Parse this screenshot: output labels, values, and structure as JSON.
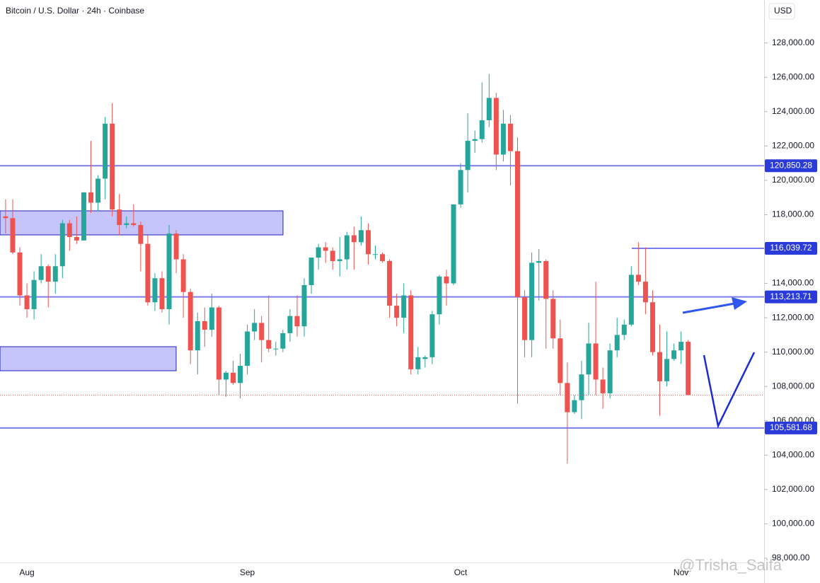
{
  "chart_data": {
    "type": "candlestick",
    "title": "Bitcoin / U.S. Dollar · 24h · Coinbase",
    "currency": "USD",
    "watermark": "@Trisha_Saifa",
    "up_color": "#26a69a",
    "down_color": "#ef5350",
    "level_color": "#7b7bf2",
    "level_tag_color": "#2b3bd9",
    "categories": [
      null,
      null,
      "Aug",
      null,
      null,
      null,
      null,
      null,
      null,
      null,
      null,
      null,
      null,
      null,
      null,
      null,
      null,
      null,
      null,
      null,
      null,
      null,
      null,
      null,
      null,
      null,
      null,
      null,
      null,
      null,
      null,
      null,
      null,
      "Sep",
      null,
      null,
      null,
      null,
      null,
      null,
      null,
      null,
      null,
      null,
      null,
      null,
      null,
      null,
      null,
      null,
      null,
      null,
      null,
      null,
      null,
      null,
      null,
      null,
      null,
      null,
      null,
      null,
      null,
      "Oct",
      null,
      null,
      null,
      null,
      null,
      null,
      null,
      null,
      null,
      null,
      null,
      null,
      null,
      null,
      null,
      null,
      null,
      null,
      null,
      null,
      null,
      null,
      null,
      null,
      null,
      null,
      null,
      null,
      null,
      null,
      "Nov",
      null,
      null
    ],
    "open": [
      117900,
      117800,
      115800,
      113300,
      112500,
      114200,
      115000,
      114100,
      115000,
      117500,
      116700,
      116500,
      119300,
      118700,
      120100,
      123300,
      118300,
      117400,
      117500,
      117400,
      116300,
      112900,
      114300,
      112500,
      116900,
      115400,
      113500,
      110100,
      111800,
      111300,
      112600,
      108400,
      108800,
      108200,
      109200,
      111200,
      111700,
      110700,
      110200,
      110200,
      111100,
      112100,
      111500,
      113900,
      115500,
      116100,
      115900,
      115300,
      115400,
      116800,
      116400,
      117100,
      115700,
      115700,
      115300,
      112700,
      112000,
      113300,
      109000,
      109600,
      109700,
      112200,
      114400,
      114000,
      118600,
      120600,
      122300,
      122400,
      123500,
      124800,
      121500,
      123300,
      121700,
      113200,
      110700,
      115200,
      115300,
      113100,
      110800,
      108200,
      106500,
      107200,
      108700,
      110500,
      108400,
      107600,
      110100,
      111000,
      111600,
      114500,
      114100,
      112900,
      110000,
      108300,
      109600,
      110100,
      110600
    ],
    "high": [
      118900,
      118900,
      116100,
      114000,
      114700,
      115700,
      115100,
      115700,
      117700,
      117700,
      117900,
      119300,
      122300,
      120300,
      123700,
      124500,
      119200,
      117900,
      118600,
      117600,
      116800,
      114600,
      114700,
      117400,
      117100,
      115700,
      113700,
      112300,
      112600,
      113400,
      112700,
      108900,
      109500,
      109900,
      111600,
      112500,
      112100,
      113300,
      110600,
      111300,
      112500,
      113300,
      114300,
      115500,
      116300,
      116400,
      116100,
      116700,
      117000,
      117300,
      117900,
      117500,
      116200,
      115800,
      115400,
      113400,
      114000,
      113600,
      110300,
      109800,
      112400,
      114500,
      114800,
      118600,
      121000,
      123900,
      122900,
      125700,
      126200,
      125100,
      124100,
      123800,
      122500,
      113600,
      115800,
      116000,
      115400,
      113600,
      111900,
      109400,
      107500,
      109500,
      111700,
      114100,
      109100,
      110500,
      112000,
      111900,
      115000,
      116400,
      116100,
      113600,
      111600,
      111200,
      110500,
      111200,
      110700
    ],
    "low": [
      116900,
      115700,
      112700,
      112000,
      111900,
      114000,
      112600,
      113400,
      114300,
      115900,
      116300,
      116500,
      118100,
      118200,
      118900,
      117900,
      116800,
      117200,
      117300,
      114700,
      112700,
      112400,
      112300,
      111600,
      114600,
      112000,
      109300,
      108700,
      110300,
      110900,
      107500,
      107400,
      108100,
      107300,
      108700,
      110700,
      109400,
      110000,
      109800,
      110000,
      110600,
      110900,
      110900,
      113400,
      114800,
      115200,
      114800,
      114400,
      114800,
      114800,
      116200,
      115100,
      115400,
      115200,
      112000,
      111500,
      111100,
      108700,
      108700,
      109100,
      109300,
      111600,
      112700,
      113900,
      118400,
      119300,
      121600,
      122200,
      123100,
      120600,
      121100,
      119700,
      107000,
      109700,
      109700,
      113000,
      110200,
      110200,
      107500,
      103500,
      106400,
      106100,
      107500,
      107500,
      106700,
      107300,
      109700,
      110700,
      111500,
      113900,
      112200,
      109800,
      106300,
      108000,
      109500,
      109300,
      107500
    ],
    "close": [
      117800,
      115800,
      113300,
      112500,
      114200,
      115000,
      114100,
      115000,
      117500,
      116700,
      116500,
      119300,
      118700,
      120100,
      123300,
      118300,
      117400,
      117500,
      117400,
      116300,
      112900,
      114300,
      112500,
      116900,
      115400,
      113500,
      110100,
      111800,
      111300,
      112600,
      108400,
      108800,
      108200,
      109200,
      111200,
      111700,
      110700,
      110200,
      110200,
      111100,
      112100,
      111500,
      113900,
      115500,
      116100,
      115900,
      115300,
      115400,
      116800,
      116400,
      117100,
      115700,
      115700,
      115300,
      112700,
      112000,
      113300,
      109000,
      109700,
      109700,
      112200,
      114400,
      114000,
      118600,
      120600,
      122300,
      122400,
      123500,
      124800,
      121500,
      123300,
      121700,
      113200,
      110700,
      115200,
      115300,
      113100,
      110800,
      108200,
      106500,
      107200,
      108700,
      110500,
      108400,
      107600,
      110100,
      111000,
      111600,
      114500,
      114100,
      112900,
      110000,
      108300,
      109600,
      110100,
      110600,
      107500
    ],
    "levels": [
      {
        "value": 120850.28,
        "label": "120,850.28"
      },
      {
        "value": 116039.72,
        "label": "116,039.72"
      },
      {
        "value": 113213.71,
        "label": "113,213.71"
      },
      {
        "value": 105581.68,
        "label": "105,581.68"
      }
    ],
    "ylim": [
      97750,
      130500
    ],
    "yticks": [
      {
        "value": 98000,
        "label": "98,000.00"
      },
      {
        "value": 100000,
        "label": "100,000.00"
      },
      {
        "value": 102000,
        "label": "102,000.00"
      },
      {
        "value": 104000,
        "label": "104,000.00"
      },
      {
        "value": 106000,
        "label": "106,000.00"
      },
      {
        "value": 108000,
        "label": "108,000.00"
      },
      {
        "value": 110000,
        "label": "110,000.00"
      },
      {
        "value": 112000,
        "label": "112,000.00"
      },
      {
        "value": 114000,
        "label": "114,000.00"
      },
      {
        "value": 116000,
        "label": "116,000.00"
      },
      {
        "value": 118000,
        "label": "118,000.00"
      },
      {
        "value": 120000,
        "label": "120,000.00"
      },
      {
        "value": 122000,
        "label": "122,000.00"
      },
      {
        "value": 124000,
        "label": "124,000.00"
      },
      {
        "value": 126000,
        "label": "126,000.00"
      },
      {
        "value": 128000,
        "label": "128,000.00"
      }
    ],
    "grid": false
  }
}
